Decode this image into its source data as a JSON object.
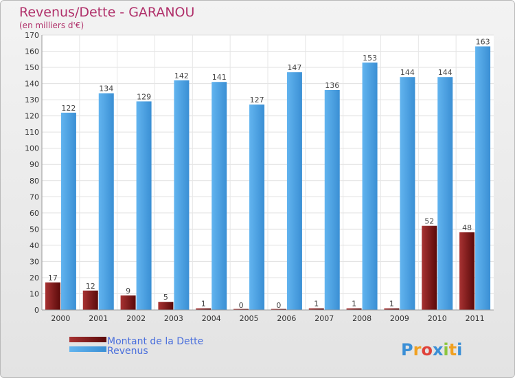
{
  "chart_data": {
    "type": "bar",
    "title": "Revenus/Dette - GARANOU",
    "subtitle": "(en milliers d'€)",
    "categories": [
      "2000",
      "2001",
      "2002",
      "2003",
      "2004",
      "2005",
      "2006",
      "2007",
      "2008",
      "2009",
      "2010",
      "2011"
    ],
    "series": [
      {
        "name": "Montant de la Dette",
        "values": [
          17,
          12,
          9,
          5,
          1,
          0,
          0,
          1,
          1,
          1,
          52,
          48
        ],
        "color": "#7a1414"
      },
      {
        "name": "Revenus",
        "values": [
          122,
          134,
          129,
          142,
          141,
          127,
          147,
          136,
          153,
          144,
          144,
          163
        ],
        "color": "#4fa6e6"
      }
    ],
    "ylim": [
      0,
      170
    ],
    "yticks": [
      0,
      10,
      20,
      30,
      40,
      50,
      60,
      70,
      80,
      90,
      100,
      110,
      120,
      130,
      140,
      150,
      160,
      170
    ],
    "grid": true,
    "legend_position": "bottom-left"
  },
  "watermark": {
    "letters": [
      "P",
      "r",
      "o",
      "x",
      "i",
      "t",
      "i"
    ],
    "colors": [
      "#3b8fd6",
      "#f0a020",
      "#e0423a",
      "#3b8fd6",
      "#8cc63f",
      "#f0a020",
      "#3b8fd6"
    ]
  }
}
